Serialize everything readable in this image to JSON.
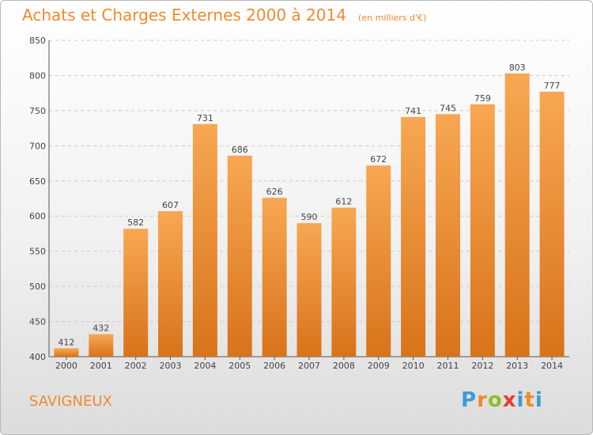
{
  "title": "Achats et Charges Externes 2000 à 2014",
  "unit": "(en milliers d'€)",
  "commune": "SAVIGNEUX",
  "logo": {
    "letters": [
      "P",
      "r",
      "o",
      "x",
      "i",
      "t",
      "i"
    ],
    "colors": [
      "#3d9bd4",
      "#f08a22",
      "#8bbf2a",
      "#e33f2c",
      "#3d9bd4",
      "#f08a22",
      "#3d9bd4"
    ]
  },
  "colors": {
    "bar_top": "#f8a752",
    "bar_bottom": "#d8731a",
    "text": "#ef8a2e"
  },
  "chart_data": {
    "type": "bar",
    "categories": [
      "2000",
      "2001",
      "2002",
      "2003",
      "2004",
      "2005",
      "2006",
      "2007",
      "2008",
      "2009",
      "2010",
      "2011",
      "2012",
      "2013",
      "2014"
    ],
    "values": [
      412,
      432,
      582,
      607,
      731,
      686,
      626,
      590,
      612,
      672,
      741,
      745,
      759,
      803,
      777
    ],
    "ylim": [
      400,
      850
    ],
    "yticks": [
      400,
      450,
      500,
      550,
      600,
      650,
      700,
      750,
      800,
      850
    ],
    "grid": true
  }
}
